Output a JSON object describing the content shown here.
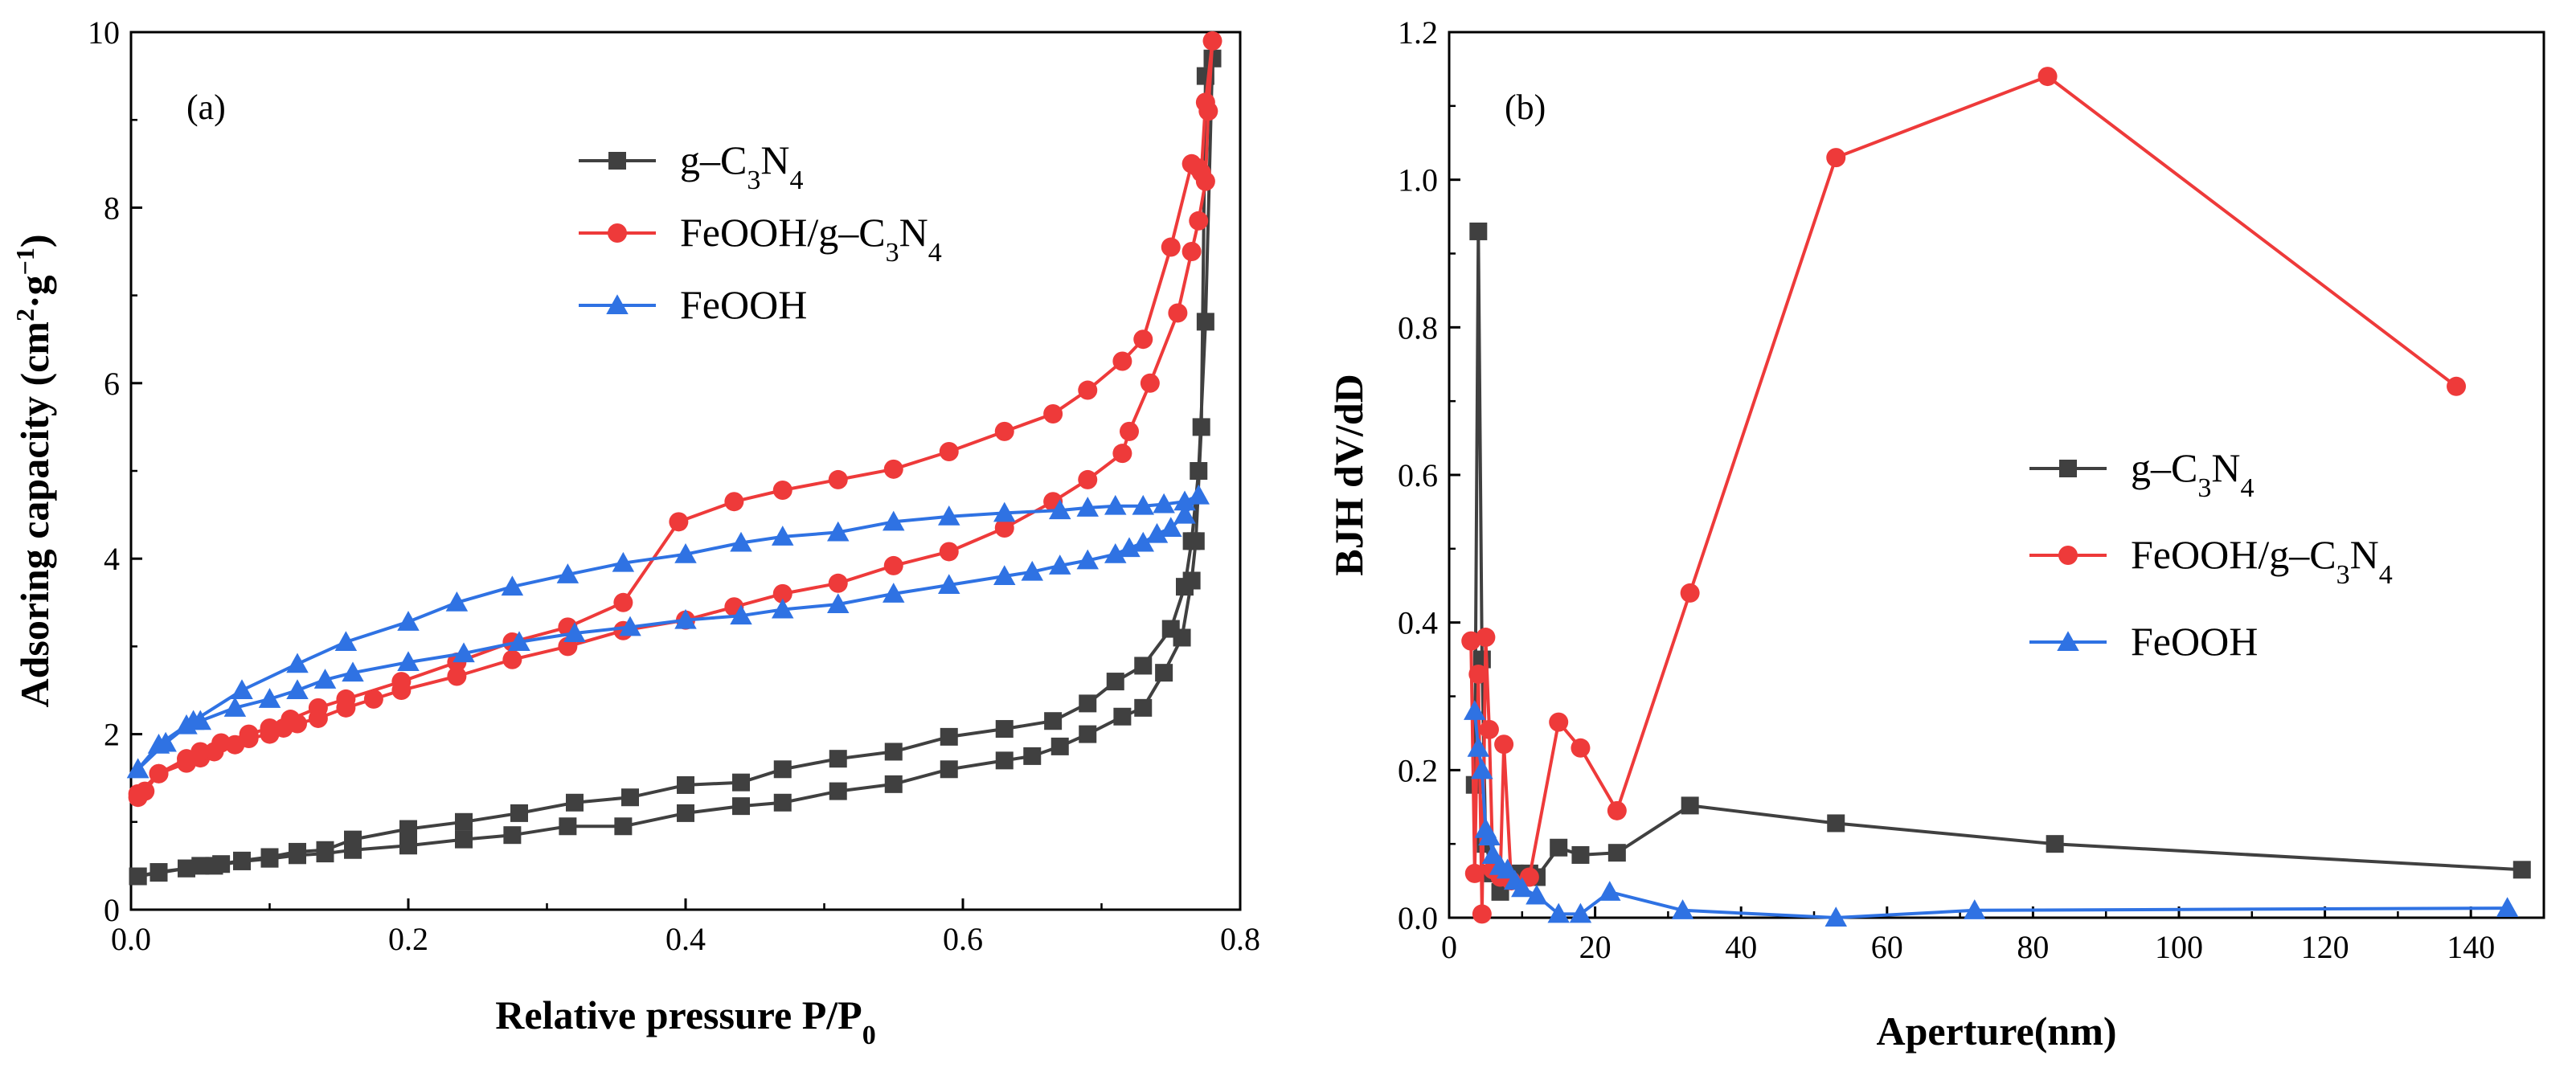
{
  "chart_data": [
    {
      "panel": "(a)",
      "type": "line",
      "xlabel": "Relative pressure P/P",
      "xlabel_sub": "0",
      "ylabel": "Adsoring capacity (cm",
      "ylabel_sup": "2",
      "ylabel_mid": "·g",
      "ylabel_sup2": "−1",
      "ylabel_end": ")",
      "xlim": [
        0,
        0.8
      ],
      "ylim": [
        0,
        10
      ],
      "xticks": [
        "0.0",
        "0.2",
        "0.4",
        "0.6",
        "0.8"
      ],
      "yticks": [
        "0",
        "2",
        "4",
        "6",
        "8",
        "10"
      ],
      "legend_position": "top-center",
      "series": [
        {
          "name": "g–C3N4",
          "name_parts": [
            "g–C",
            "3",
            "N",
            "4",
            ""
          ],
          "color": "#404040",
          "marker": "square",
          "points": [
            [
              0.005,
              0.38
            ],
            [
              0.02,
              0.43
            ],
            [
              0.04,
              0.47
            ],
            [
              0.05,
              0.5
            ],
            [
              0.065,
              0.52
            ],
            [
              0.08,
              0.56
            ],
            [
              0.1,
              0.6
            ],
            [
              0.12,
              0.66
            ],
            [
              0.14,
              0.68
            ],
            [
              0.16,
              0.8
            ],
            [
              0.2,
              0.92
            ],
            [
              0.24,
              1.0
            ],
            [
              0.28,
              1.1
            ],
            [
              0.32,
              1.22
            ],
            [
              0.36,
              1.28
            ],
            [
              0.4,
              1.42
            ],
            [
              0.44,
              1.45
            ],
            [
              0.47,
              1.6
            ],
            [
              0.51,
              1.72
            ],
            [
              0.55,
              1.8
            ],
            [
              0.59,
              1.97
            ],
            [
              0.63,
              2.06
            ],
            [
              0.665,
              2.15
            ],
            [
              0.69,
              2.35
            ],
            [
              0.71,
              2.6
            ],
            [
              0.73,
              2.78
            ],
            [
              0.75,
              3.2
            ],
            [
              0.76,
              3.68
            ],
            [
              0.765,
              4.2
            ],
            [
              0.77,
              5.0
            ],
            [
              0.775,
              6.7
            ],
            [
              0.78,
              9.7
            ],
            [
              0.775,
              9.5
            ],
            [
              0.772,
              5.5
            ],
            [
              0.768,
              4.2
            ],
            [
              0.765,
              3.75
            ],
            [
              0.758,
              3.1
            ],
            [
              0.745,
              2.7
            ],
            [
              0.73,
              2.3
            ],
            [
              0.715,
              2.2
            ],
            [
              0.69,
              2.0
            ],
            [
              0.67,
              1.86
            ],
            [
              0.65,
              1.75
            ],
            [
              0.63,
              1.7
            ],
            [
              0.59,
              1.6
            ],
            [
              0.55,
              1.43
            ],
            [
              0.51,
              1.35
            ],
            [
              0.47,
              1.22
            ],
            [
              0.44,
              1.18
            ],
            [
              0.4,
              1.1
            ],
            [
              0.355,
              0.95
            ],
            [
              0.315,
              0.95
            ],
            [
              0.275,
              0.85
            ],
            [
              0.24,
              0.8
            ],
            [
              0.2,
              0.73
            ],
            [
              0.16,
              0.68
            ],
            [
              0.14,
              0.64
            ],
            [
              0.12,
              0.62
            ],
            [
              0.1,
              0.58
            ],
            [
              0.08,
              0.55
            ],
            [
              0.06,
              0.5
            ],
            [
              0.04,
              0.47
            ],
            [
              0.02,
              0.42
            ],
            [
              0.005,
              0.38
            ]
          ]
        },
        {
          "name": "FeOOH/g–C3N4",
          "name_parts": [
            "FeOOH/g–C",
            "3",
            "N",
            "4",
            ""
          ],
          "color": "#ee3a3a",
          "marker": "circle",
          "points": [
            [
              0.005,
              1.28
            ],
            [
              0.01,
              1.35
            ],
            [
              0.02,
              1.55
            ],
            [
              0.04,
              1.67
            ],
            [
              0.05,
              1.73
            ],
            [
              0.06,
              1.8
            ],
            [
              0.075,
              1.88
            ],
            [
              0.085,
              1.95
            ],
            [
              0.1,
              2.0
            ],
            [
              0.11,
              2.07
            ],
            [
              0.12,
              2.12
            ],
            [
              0.135,
              2.18
            ],
            [
              0.155,
              2.3
            ],
            [
              0.175,
              2.4
            ],
            [
              0.195,
              2.5
            ],
            [
              0.235,
              2.66
            ],
            [
              0.275,
              2.85
            ],
            [
              0.315,
              3.0
            ],
            [
              0.355,
              3.18
            ],
            [
              0.4,
              3.3
            ],
            [
              0.435,
              3.45
            ],
            [
              0.47,
              3.6
            ],
            [
              0.51,
              3.72
            ],
            [
              0.55,
              3.92
            ],
            [
              0.59,
              4.08
            ],
            [
              0.63,
              4.35
            ],
            [
              0.665,
              4.65
            ],
            [
              0.69,
              4.9
            ],
            [
              0.715,
              5.2
            ],
            [
              0.72,
              5.45
            ],
            [
              0.735,
              6.0
            ],
            [
              0.755,
              6.8
            ],
            [
              0.765,
              7.5
            ],
            [
              0.77,
              7.85
            ],
            [
              0.775,
              8.3
            ],
            [
              0.777,
              9.1
            ],
            [
              0.78,
              9.9
            ],
            [
              0.775,
              9.2
            ],
            [
              0.772,
              8.4
            ],
            [
              0.77,
              8.45
            ],
            [
              0.765,
              8.5
            ],
            [
              0.75,
              7.55
            ],
            [
              0.73,
              6.5
            ],
            [
              0.715,
              6.25
            ],
            [
              0.69,
              5.92
            ],
            [
              0.665,
              5.65
            ],
            [
              0.63,
              5.45
            ],
            [
              0.59,
              5.22
            ],
            [
              0.55,
              5.02
            ],
            [
              0.51,
              4.9
            ],
            [
              0.47,
              4.78
            ],
            [
              0.435,
              4.65
            ],
            [
              0.395,
              4.42
            ],
            [
              0.355,
              3.5
            ],
            [
              0.315,
              3.22
            ],
            [
              0.275,
              3.05
            ],
            [
              0.235,
              2.82
            ],
            [
              0.195,
              2.6
            ],
            [
              0.155,
              2.4
            ],
            [
              0.135,
              2.3
            ],
            [
              0.115,
              2.17
            ],
            [
              0.1,
              2.07
            ],
            [
              0.085,
              2.0
            ],
            [
              0.065,
              1.9
            ],
            [
              0.05,
              1.8
            ],
            [
              0.04,
              1.72
            ],
            [
              0.02,
              1.55
            ],
            [
              0.005,
              1.32
            ]
          ]
        },
        {
          "name": "FeOOH",
          "name_parts": [
            "FeOOH",
            "",
            "",
            "",
            ""
          ],
          "color": "#2f72e3",
          "marker": "triangle",
          "points": [
            [
              0.005,
              1.6
            ],
            [
              0.02,
              1.88
            ],
            [
              0.04,
              2.1
            ],
            [
              0.05,
              2.15
            ],
            [
              0.075,
              2.3
            ],
            [
              0.1,
              2.4
            ],
            [
              0.12,
              2.5
            ],
            [
              0.14,
              2.62
            ],
            [
              0.16,
              2.7
            ],
            [
              0.2,
              2.82
            ],
            [
              0.24,
              2.92
            ],
            [
              0.28,
              3.05
            ],
            [
              0.32,
              3.15
            ],
            [
              0.36,
              3.22
            ],
            [
              0.4,
              3.3
            ],
            [
              0.44,
              3.35
            ],
            [
              0.47,
              3.42
            ],
            [
              0.51,
              3.48
            ],
            [
              0.55,
              3.6
            ],
            [
              0.59,
              3.7
            ],
            [
              0.63,
              3.8
            ],
            [
              0.65,
              3.85
            ],
            [
              0.67,
              3.92
            ],
            [
              0.69,
              3.98
            ],
            [
              0.71,
              4.05
            ],
            [
              0.72,
              4.12
            ],
            [
              0.73,
              4.18
            ],
            [
              0.74,
              4.28
            ],
            [
              0.75,
              4.35
            ],
            [
              0.76,
              4.5
            ],
            [
              0.77,
              4.72
            ],
            [
              0.76,
              4.65
            ],
            [
              0.745,
              4.62
            ],
            [
              0.73,
              4.6
            ],
            [
              0.71,
              4.6
            ],
            [
              0.69,
              4.58
            ],
            [
              0.67,
              4.55
            ],
            [
              0.63,
              4.52
            ],
            [
              0.59,
              4.48
            ],
            [
              0.55,
              4.42
            ],
            [
              0.51,
              4.3
            ],
            [
              0.47,
              4.25
            ],
            [
              0.44,
              4.18
            ],
            [
              0.4,
              4.05
            ],
            [
              0.355,
              3.95
            ],
            [
              0.315,
              3.82
            ],
            [
              0.275,
              3.68
            ],
            [
              0.235,
              3.5
            ],
            [
              0.2,
              3.28
            ],
            [
              0.155,
              3.05
            ],
            [
              0.12,
              2.8
            ],
            [
              0.08,
              2.5
            ],
            [
              0.045,
              2.15
            ],
            [
              0.025,
              1.9
            ],
            [
              0.005,
              1.6
            ]
          ]
        }
      ]
    },
    {
      "panel": "(b)",
      "type": "line",
      "xlabel": "Aperture(nm)",
      "ylabel": "BJH dV/dD",
      "xlim": [
        0,
        150
      ],
      "ylim": [
        0,
        1.2
      ],
      "xticks": [
        "0",
        "20",
        "40",
        "60",
        "80",
        "100",
        "120",
        "140"
      ],
      "yticks": [
        "0.0",
        "0.2",
        "0.4",
        "0.6",
        "0.8",
        "1.0",
        "1.2"
      ],
      "legend_position": "center-right",
      "series": [
        {
          "name": "g–C3N4",
          "name_parts": [
            "g–C",
            "3",
            "N",
            "4",
            ""
          ],
          "color": "#404040",
          "marker": "square",
          "points": [
            [
              3.5,
              0.18
            ],
            [
              4.0,
              0.93
            ],
            [
              4.5,
              0.35
            ],
            [
              5.0,
              0.1
            ],
            [
              6.0,
              0.06
            ],
            [
              7.0,
              0.035
            ],
            [
              8.0,
              0.05
            ],
            [
              9.0,
              0.06
            ],
            [
              11.0,
              0.06
            ],
            [
              12.0,
              0.055
            ],
            [
              15.0,
              0.095
            ],
            [
              18.0,
              0.085
            ],
            [
              23.0,
              0.088
            ],
            [
              33.0,
              0.152
            ],
            [
              53.0,
              0.128
            ],
            [
              83.0,
              0.1
            ],
            [
              147.0,
              0.065
            ]
          ]
        },
        {
          "name": "FeOOH/g–C3N4",
          "name_parts": [
            "FeOOH/g–C",
            "3",
            "N",
            "4",
            ""
          ],
          "color": "#ee3a3a",
          "marker": "circle",
          "points": [
            [
              3.0,
              0.375
            ],
            [
              3.5,
              0.06
            ],
            [
              4.0,
              0.33
            ],
            [
              4.5,
              0.005
            ],
            [
              5.0,
              0.38
            ],
            [
              5.5,
              0.255
            ],
            [
              6.0,
              0.065
            ],
            [
              7.0,
              0.055
            ],
            [
              7.5,
              0.235
            ],
            [
              8.5,
              0.05
            ],
            [
              11.0,
              0.055
            ],
            [
              15.0,
              0.265
            ],
            [
              18.0,
              0.23
            ],
            [
              23.0,
              0.145
            ],
            [
              33.0,
              0.44
            ],
            [
              53.0,
              1.03
            ],
            [
              82.0,
              1.14
            ],
            [
              138.0,
              0.72
            ]
          ]
        },
        {
          "name": "FeOOH",
          "name_parts": [
            "FeOOH",
            "",
            "",
            "",
            ""
          ],
          "color": "#2f72e3",
          "marker": "triangle",
          "points": [
            [
              3.5,
              0.28
            ],
            [
              4.0,
              0.23
            ],
            [
              4.5,
              0.2
            ],
            [
              5.0,
              0.12
            ],
            [
              5.5,
              0.11
            ],
            [
              6.0,
              0.085
            ],
            [
              7.0,
              0.07
            ],
            [
              8.0,
              0.065
            ],
            [
              9.0,
              0.05
            ],
            [
              10.0,
              0.04
            ],
            [
              12.0,
              0.03
            ],
            [
              15.0,
              0.005
            ],
            [
              18.0,
              0.005
            ],
            [
              22.0,
              0.035
            ],
            [
              32.0,
              0.01
            ],
            [
              53.0,
              0.0
            ],
            [
              72.0,
              0.01
            ],
            [
              145.0,
              0.013
            ]
          ]
        }
      ]
    }
  ]
}
